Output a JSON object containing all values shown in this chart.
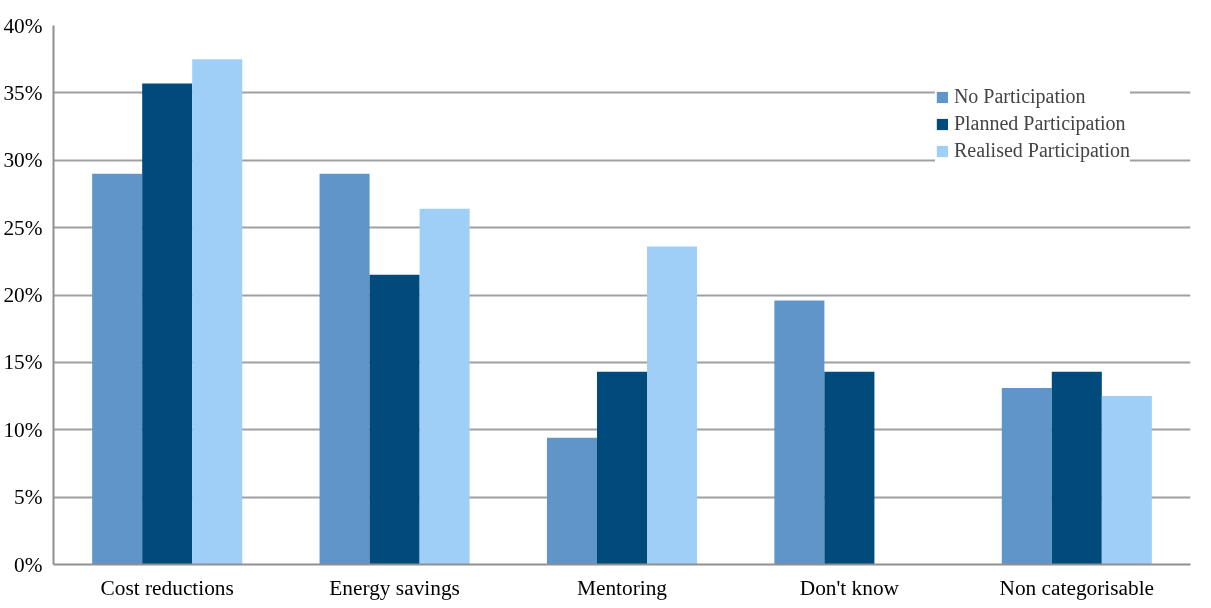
{
  "chart_data": {
    "type": "bar",
    "categories": [
      "Cost reductions",
      "Energy savings",
      "Mentoring",
      "Don't know",
      "Non categorisable"
    ],
    "series": [
      {
        "name": "No Participation",
        "color": "#6095c9",
        "values": [
          29.0,
          29.0,
          9.4,
          19.6,
          13.1
        ]
      },
      {
        "name": "Planned Participation",
        "color": "#004a7c",
        "values": [
          35.7,
          21.5,
          14.3,
          14.3,
          14.3
        ]
      },
      {
        "name": "Realised Participation",
        "color": "#9fcff6",
        "values": [
          37.5,
          26.4,
          23.6,
          null,
          12.5
        ]
      }
    ],
    "ylim": [
      0,
      40
    ],
    "yticks": [
      {
        "value": 0,
        "label": "0%"
      },
      {
        "value": 5,
        "label": "5%"
      },
      {
        "value": 10,
        "label": "10%"
      },
      {
        "value": 15,
        "label": "15%"
      },
      {
        "value": 20,
        "label": "20%"
      },
      {
        "value": 25,
        "label": "25%"
      },
      {
        "value": 30,
        "label": "30%"
      },
      {
        "value": 35,
        "label": "35%"
      },
      {
        "value": 40,
        "label": "40%"
      }
    ],
    "grid": "y",
    "legend": "top right"
  }
}
